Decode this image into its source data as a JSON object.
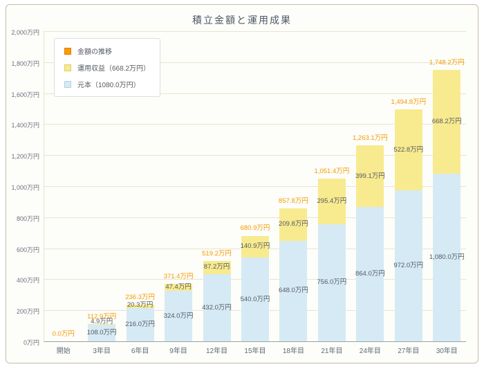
{
  "accent_color": "#f59a00",
  "chart_data": {
    "type": "bar",
    "stacked": true,
    "title": "積立金額と運用成果",
    "categories": [
      "開始",
      "3年目",
      "6年目",
      "9年目",
      "12年目",
      "15年目",
      "18年目",
      "21年目",
      "24年目",
      "27年目",
      "30年目"
    ],
    "series": [
      {
        "name": "元本（1080.0万円）",
        "color": "#d5eaf5",
        "border": "#b3cfdf",
        "values": [
          0,
          108.0,
          216.0,
          324.0,
          432.0,
          540.0,
          648.0,
          756.0,
          864.0,
          972.0,
          1080.0
        ],
        "labels": [
          "",
          "108.0万円",
          "216.0万円",
          "324.0万円",
          "432.0万円",
          "540.0万円",
          "648.0万円",
          "756.0万円",
          "864.0万円",
          "972.0万円",
          "1,080.0万円"
        ]
      },
      {
        "name": "運用収益（668.2万円）",
        "color": "#f8ea8f",
        "border": "#dccb67",
        "values": [
          0,
          4.9,
          20.3,
          47.4,
          87.2,
          140.9,
          209.8,
          295.4,
          399.1,
          522.8,
          668.2
        ],
        "labels": [
          "",
          "4.9万円",
          "20.3万円",
          "47.4万円",
          "87.2万円",
          "140.9万円",
          "209.8万円",
          "295.4万円",
          "399.1万円",
          "522.8万円",
          "668.2万円"
        ]
      }
    ],
    "totals": [
      0.0,
      112.9,
      236.3,
      371.4,
      519.2,
      680.9,
      857.8,
      1051.4,
      1263.1,
      1494.8,
      1748.2
    ],
    "total_labels": [
      "0.0万円",
      "112.9万円",
      "236.3万円",
      "371.4万円",
      "519.2万円",
      "680.9万円",
      "857.8万円",
      "1,051.4万円",
      "1,263.1万円",
      "1,494.8万円",
      "1,748.2万円"
    ],
    "legend": [
      {
        "label": "金額の推移",
        "color": "#ff9900",
        "border": "#d97c00"
      },
      {
        "label": "運用収益（668.2万円）",
        "color": "#f8ea8f",
        "border": "#dccb67"
      },
      {
        "label": "元本（1080.0万円）",
        "color": "#d5eaf5",
        "border": "#b3cfdf"
      }
    ],
    "legend_position": "top-left",
    "grid": true,
    "ylim": [
      0,
      2000
    ],
    "ytick_step": 200,
    "ytick_labels": [
      "0万円",
      "200万円",
      "400万円",
      "600万円",
      "800万円",
      "1,000万円",
      "1,200万円",
      "1,400万円",
      "1,600万円",
      "1,800万円",
      "2,000万円"
    ]
  }
}
